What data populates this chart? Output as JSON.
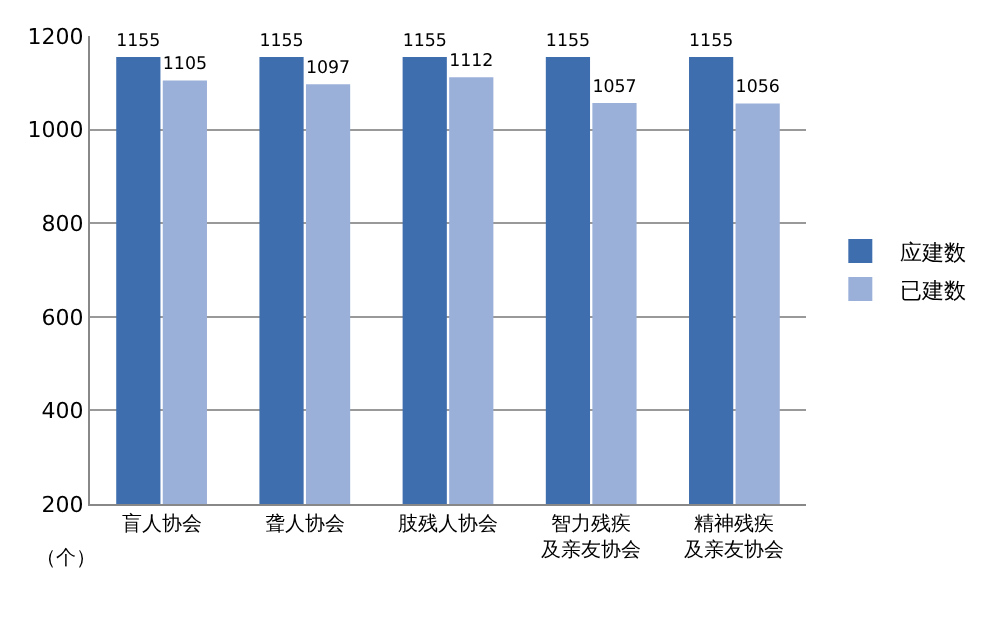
{
  "chart_data": {
    "type": "bar",
    "categories": [
      "盲人协会",
      "聋人协会",
      "肢残人协会",
      "智力残疾及亲友协会",
      "精神残疾及亲友协会"
    ],
    "series": [
      {
        "name": "应建数",
        "color": "#3f6eae",
        "values": [
          1155,
          1155,
          1155,
          1155,
          1155
        ]
      },
      {
        "name": "已建数",
        "color": "#9bb0d9",
        "values": [
          1105,
          1097,
          1112,
          1057,
          1056
        ]
      }
    ],
    "ylim": [
      200,
      1200
    ],
    "yticks": [
      200,
      400,
      600,
      800,
      1000,
      1200
    ],
    "grid": "y",
    "legend": "right",
    "data_labels": true,
    "annotations": [
      "（个）"
    ]
  }
}
